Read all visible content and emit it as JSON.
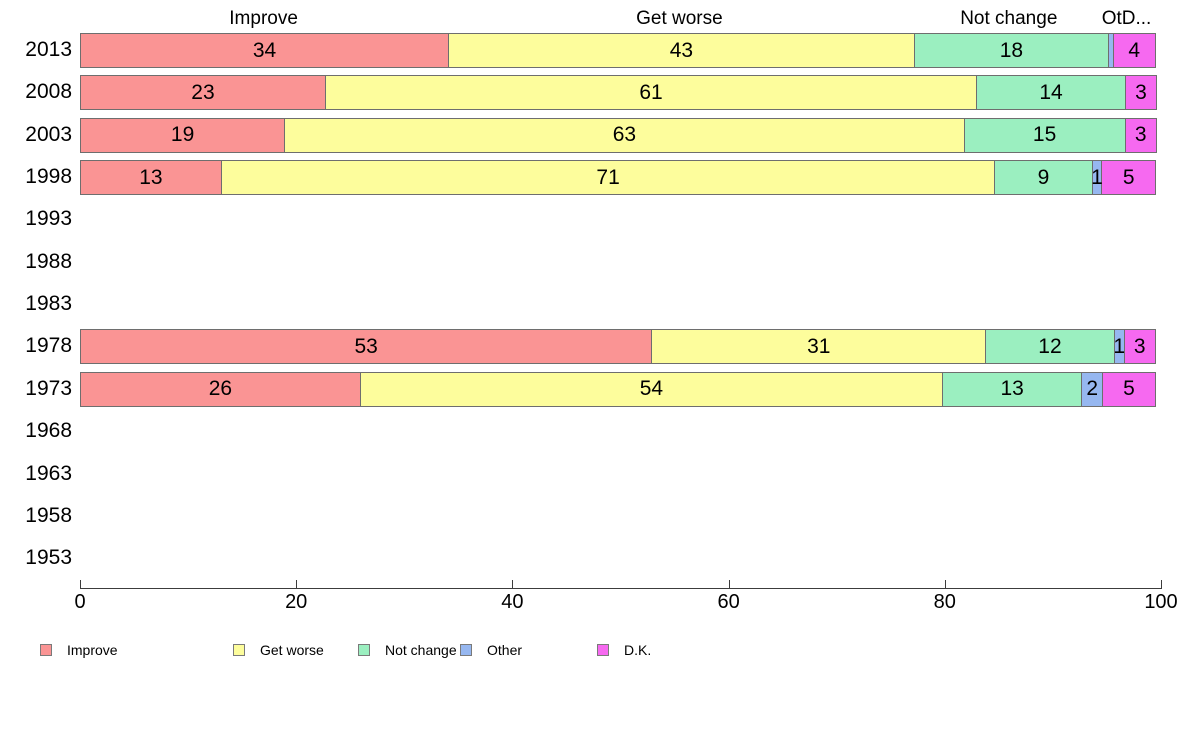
{
  "chart_data": {
    "type": "bar",
    "orientation": "horizontal",
    "stacked": true,
    "title": "",
    "xlabel": "",
    "ylabel": "",
    "xlim": [
      0,
      100
    ],
    "x_ticks": [
      0,
      20,
      40,
      60,
      80,
      100
    ],
    "grid": false,
    "legend_position": "bottom",
    "categories": [
      "2013",
      "2008",
      "2003",
      "1998",
      "1993",
      "1988",
      "1983",
      "1978",
      "1973",
      "1968",
      "1963",
      "1958",
      "1953"
    ],
    "series": [
      {
        "name": "Improve",
        "color": "#FA9494",
        "values": [
          34,
          23,
          19,
          13,
          null,
          null,
          null,
          53,
          26,
          null,
          null,
          null,
          null
        ]
      },
      {
        "name": "Get worse",
        "color": "#FDFD9C",
        "values": [
          43,
          61,
          63,
          71,
          null,
          null,
          null,
          31,
          54,
          null,
          null,
          null,
          null
        ]
      },
      {
        "name": "Not change",
        "color": "#9BEFC0",
        "values": [
          18,
          14,
          15,
          9,
          null,
          null,
          null,
          12,
          13,
          null,
          null,
          null,
          null
        ]
      },
      {
        "name": "Other",
        "color": "#96B7F0",
        "values": [
          0.5,
          0,
          0,
          1,
          null,
          null,
          null,
          1,
          2,
          null,
          null,
          null,
          null
        ]
      },
      {
        "name": "D.K.",
        "color": "#F669F0",
        "values": [
          4,
          3,
          3,
          5,
          null,
          null,
          null,
          3,
          5,
          null,
          null,
          null,
          null
        ]
      }
    ],
    "column_headers": [
      {
        "text": "Improve",
        "x_percent": 17.0
      },
      {
        "text": "Get worse",
        "x_percent": 55.5
      },
      {
        "text": "Not change",
        "x_percent": 86.0
      },
      {
        "text": "OtD...",
        "x_percent": 96.9
      }
    ],
    "colors": {
      "axis": "#3c3c3c",
      "segment_border": "#6e6e6e",
      "background": "#ffffff",
      "text": "#000000"
    }
  }
}
